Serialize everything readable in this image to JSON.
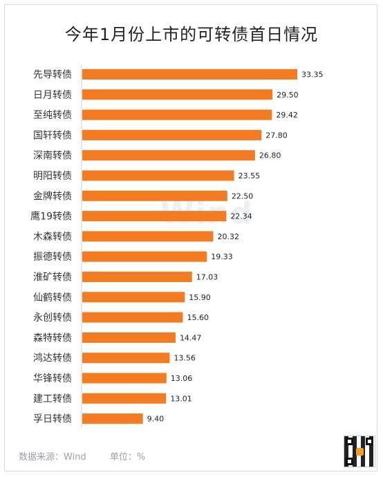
{
  "title": "今年1月份上市的可转债首日情况",
  "watermark": "Wind",
  "footer": {
    "source": "数据来源：Wind",
    "unit": "单位：%"
  },
  "chart_data": {
    "type": "bar",
    "orientation": "horizontal",
    "title": "今年1月份上市的可转债首日情况",
    "bar_color": "#f47b20",
    "categories": [
      "先导转债",
      "日月转债",
      "至纯转债",
      "国轩转债",
      "深南转债",
      "明阳转债",
      "金牌转债",
      "鹰19转债",
      "木森转债",
      "振德转债",
      "淮矿转债",
      "仙鹤转债",
      "永创转债",
      "森特转债",
      "鸿达转债",
      "华锋转债",
      "建工转债",
      "孚日转债"
    ],
    "values": [
      33.35,
      29.5,
      29.42,
      27.8,
      26.8,
      23.55,
      22.5,
      22.34,
      20.32,
      19.33,
      17.03,
      15.9,
      15.6,
      14.47,
      13.56,
      13.06,
      13.01,
      9.4
    ],
    "value_labels": [
      "33.35",
      "29.50",
      "29.42",
      "27.80",
      "26.80",
      "23.55",
      "22.50",
      "22.34",
      "20.32",
      "19.33",
      "17.03",
      "15.90",
      "15.60",
      "14.47",
      "13.56",
      "13.06",
      "13.01",
      "9.40"
    ],
    "xlabel": "",
    "ylabel": "",
    "xlim": [
      0,
      33.35
    ],
    "grid": false,
    "legend": "none"
  }
}
